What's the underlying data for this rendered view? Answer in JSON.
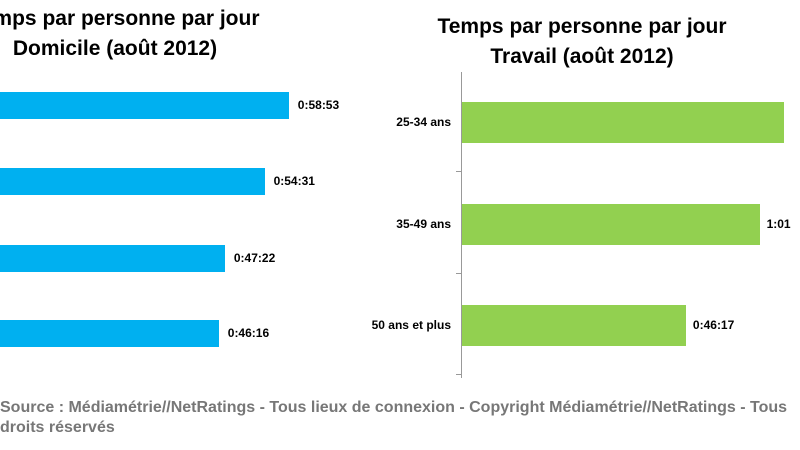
{
  "chart_data": [
    {
      "type": "bar",
      "orientation": "horizontal",
      "title_line1": "Temps par personne par jour",
      "title_line2": "Domicile (août 2012)",
      "color": "#00b0f0",
      "categories": [
        "",
        "",
        "",
        ""
      ],
      "values_seconds": [
        3533,
        3271,
        2842,
        2776
      ],
      "labels": [
        "0:58:53",
        "0:54:31",
        "0:47:22",
        "0:46:16"
      ]
    },
    {
      "type": "bar",
      "orientation": "horizontal",
      "title_line1": "Temps par personne par jour",
      "title_line2": "Travail (août 2012)",
      "color": "#92d050",
      "categories": [
        "25-34 ans",
        "35-49 ans",
        "50 ans et plus"
      ],
      "values_seconds": [
        3990,
        3686,
        2777
      ],
      "labels": [
        "",
        "1:01",
        "0:46:17"
      ]
    }
  ],
  "footer": "Source : Médiamétrie//NetRatings - Tous lieux de connexion - Copyright Médiamétrie//NetRatings - Tous droits réservés"
}
